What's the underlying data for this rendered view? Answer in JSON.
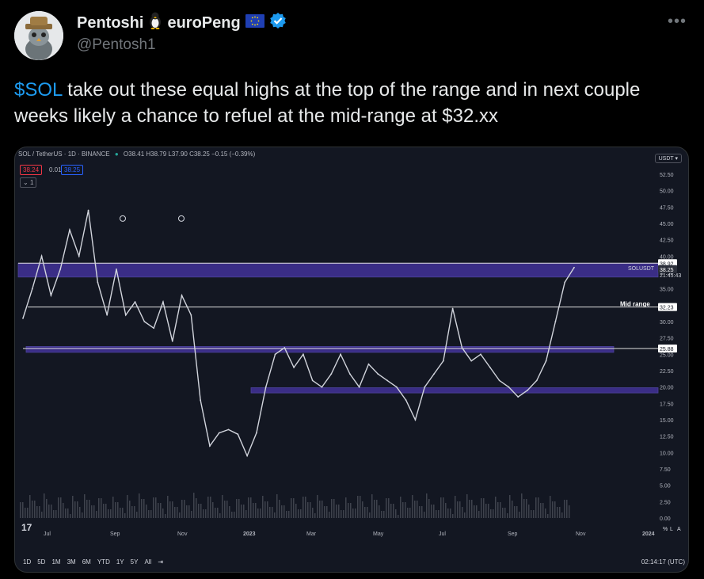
{
  "tweet": {
    "display_name": "Pentoshi",
    "name_suffix": "euroPeng",
    "handle": "@Pentosh1",
    "more_label": "•••",
    "text_cashtag": "$SOL",
    "text_body": " take out these equal highs at the top of the range and in next couple weeks likely a chance to refuel at the mid-range at $32.xx"
  },
  "chart": {
    "header": "SOL / TetherUS · 1D · BINANCE",
    "ohlc": "O38.41 H38.79 L37.90 C38.25 −0.15 (−0.39%)",
    "sell_price": "38.24",
    "spread": "0.01",
    "buy_price": "38.25",
    "indicator_count": "1",
    "currency": "USDT",
    "mid_range_label": "Mid range",
    "symbol_label": "SOLUSDT",
    "countdown": "21:45:43",
    "timestamp": "02:14:17 (UTC)",
    "timeframes": [
      "1D",
      "5D",
      "1M",
      "3M",
      "6M",
      "YTD",
      "1Y",
      "5Y",
      "All"
    ],
    "corner_buttons": [
      "%",
      "L",
      "A"
    ],
    "tv_logo": "17"
  },
  "colors": {
    "accent_blue": "#1d9bf0",
    "range_band": "#5b3fd9",
    "candle": "#d1d4dc",
    "chart_bg": "#131722"
  },
  "chart_data": {
    "type": "line",
    "title": "SOL / TetherUS · 1D · BINANCE",
    "x_ticks": [
      "Jul",
      "Sep",
      "Nov",
      "2023",
      "Mar",
      "May",
      "Jul",
      "Sep",
      "Nov",
      "2024"
    ],
    "y_ticks": [
      52.5,
      50.0,
      47.5,
      45.0,
      42.5,
      40.0,
      37.5,
      35.0,
      32.5,
      30.0,
      27.5,
      25.0,
      22.5,
      20.0,
      17.5,
      15.0,
      12.5,
      10.0,
      7.5,
      5.0,
      2.5,
      0.0
    ],
    "ylim": [
      0,
      52.5
    ],
    "price_labels": [
      38.92,
      38.25,
      32.23,
      25.88
    ],
    "levels": [
      {
        "name": "resistance",
        "value": 38.92
      },
      {
        "name": "mid-range",
        "value": 32.23
      },
      {
        "name": "range-low",
        "value": 25.88
      }
    ],
    "bands": [
      {
        "from": 36.8,
        "to": 38.9
      },
      {
        "from": 25.3,
        "to": 26.2
      },
      {
        "from": 19.1,
        "to": 19.9
      }
    ],
    "series": [
      {
        "values": [
          30.5,
          35,
          40,
          34,
          38,
          44,
          40,
          47,
          36,
          31,
          38,
          31,
          33,
          30,
          29,
          33,
          27,
          34,
          31,
          18,
          11,
          13,
          13.5,
          12.8,
          9.5,
          13,
          20,
          25,
          26,
          23,
          25,
          21,
          20,
          22,
          25,
          22,
          20,
          23.5,
          22,
          21,
          20,
          18,
          15,
          20,
          22,
          24,
          32,
          26,
          24,
          25,
          23,
          21,
          20,
          18.5,
          19.5,
          21,
          24,
          30,
          36,
          38.25
        ]
      }
    ]
  }
}
